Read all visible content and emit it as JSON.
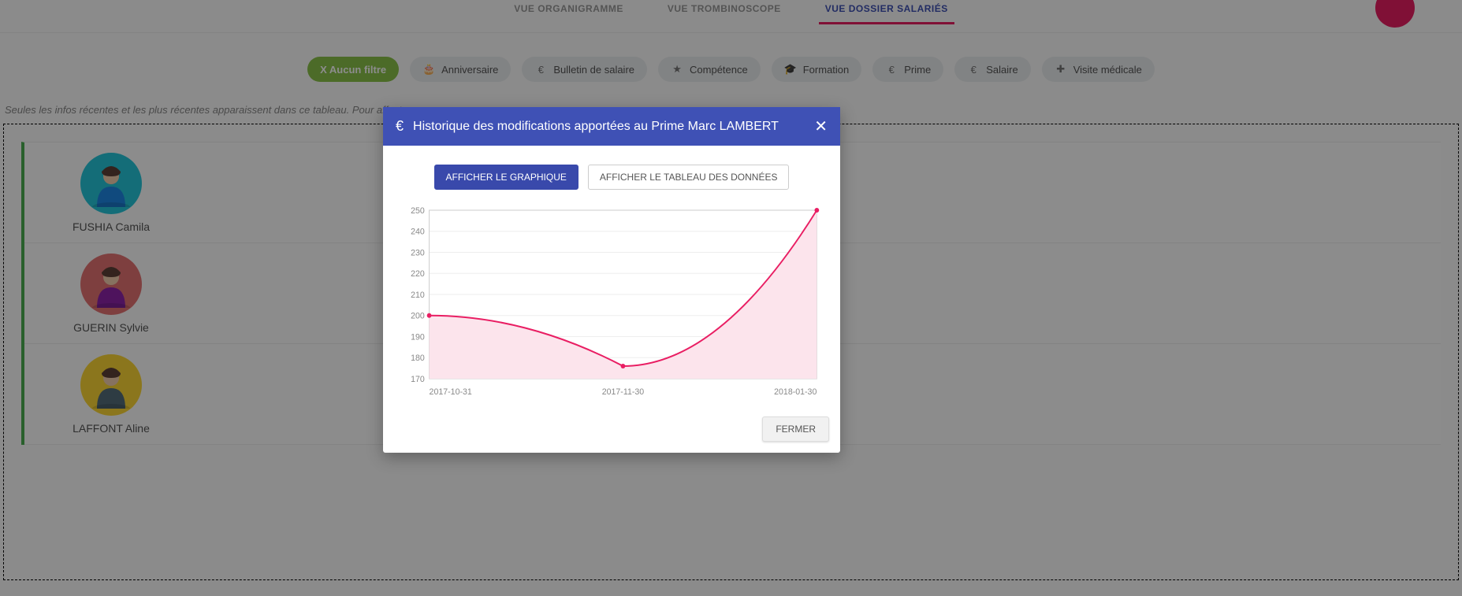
{
  "tabs": {
    "organigramme": "VUE ORGANIGRAMME",
    "trombinoscope": "VUE TROMBINOSCOPE",
    "dossier": "VUE DOSSIER SALARIÉS"
  },
  "filters": {
    "none": "X Aucun filtre",
    "anniversaire": "Anniversaire",
    "bulletin": "Bulletin de salaire",
    "competence": "Compétence",
    "formation": "Formation",
    "prime": "Prime",
    "salaire": "Salaire",
    "visite": "Visite médicale"
  },
  "hint": "Seules les infos récentes et les plus récentes apparaissent dans ce tableau.  Pour affecter u",
  "people": [
    {
      "name": "FUSHIA Camila",
      "bg": "#26c6da",
      "coat": "#1e88e5"
    },
    {
      "name": "GUERIN Sylvie",
      "bg": "#e57373",
      "coat": "#8e24aa"
    },
    {
      "name": "LAFFONT Aline",
      "bg": "#fdd835",
      "coat": "#546e7a"
    }
  ],
  "modal": {
    "title": "Historique des modifications apportées au Prime Marc LAMBERT",
    "btn_graph": "AFFICHER LE GRAPHIQUE",
    "btn_table": "AFFICHER LE TABLEAU DES DONNÉES",
    "btn_close": "FERMER"
  },
  "chart": {
    "type": "area",
    "x_labels": [
      "2017-10-31",
      "2017-11-30",
      "2018-01-30"
    ],
    "x_positions": [
      0,
      0.5,
      1
    ],
    "values": [
      200,
      176,
      250
    ],
    "ylim": [
      170,
      250
    ],
    "ytick_step": 10,
    "line_color": "#e91e63",
    "fill_color": "#fce4ec",
    "point_color": "#e91e63",
    "grid_color": "#eeeeee",
    "axis_color": "#cccccc",
    "label_color": "#888888",
    "background_color": "#ffffff",
    "label_fontsize": 11
  }
}
